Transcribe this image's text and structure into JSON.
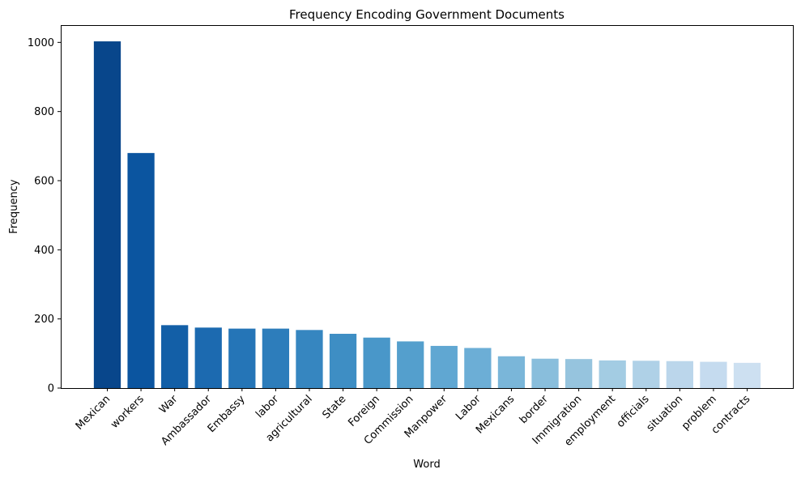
{
  "chart_data": {
    "type": "bar",
    "title": "Frequency Encoding Government Documents",
    "xlabel": "Word",
    "ylabel": "Frequency",
    "ylim": [
      0,
      1050
    ],
    "yticks": [
      0,
      200,
      400,
      600,
      800,
      1000
    ],
    "grid": false,
    "categories": [
      "Mexican",
      "workers",
      "War",
      "Ambassador",
      "Embassy",
      "labor",
      "agricultural",
      "State",
      "Foreign",
      "Commission",
      "Manpower",
      "Labor",
      "Mexicans",
      "border",
      "Immigration",
      "employment",
      "officials",
      "situation",
      "problem",
      "contracts"
    ],
    "values": [
      1003,
      680,
      182,
      175,
      172,
      172,
      168,
      157,
      146,
      135,
      122,
      116,
      92,
      85,
      84,
      80,
      79,
      78,
      76,
      73
    ],
    "colors": [
      "#08468b",
      "#0b55a0",
      "#135fa7",
      "#1c6ab0",
      "#2575b7",
      "#2d7dbb",
      "#3686c0",
      "#3e8ec4",
      "#4997c9",
      "#549fcd",
      "#60a7d2",
      "#6caed6",
      "#7ab6d9",
      "#89bedc",
      "#96c4de",
      "#a3cce3",
      "#afd1e7",
      "#bbd6eb",
      "#c5dbef",
      "#cde0f1"
    ]
  }
}
